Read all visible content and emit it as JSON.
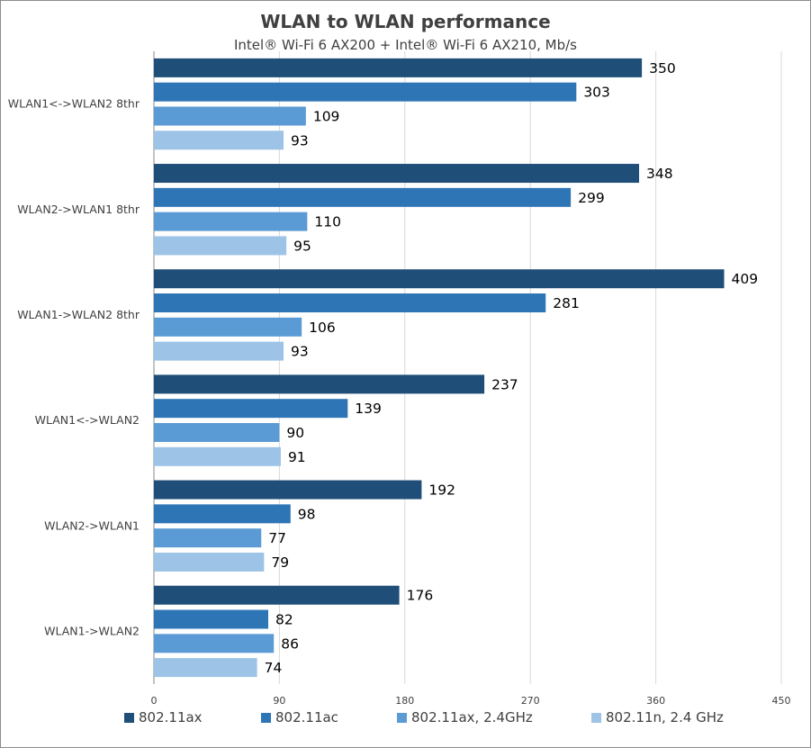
{
  "chart_data": {
    "type": "bar",
    "orientation": "horizontal",
    "title": "WLAN to WLAN performance",
    "subtitle": "Intel® Wi-Fi 6 AX200 + Intel® Wi-Fi 6 AX210, Mb/s",
    "xlabel": "",
    "ylabel": "",
    "xlim": [
      0,
      450
    ],
    "x_ticks": [
      "0",
      "90",
      "180",
      "270",
      "360",
      "450"
    ],
    "grid": true,
    "legend_position": "bottom",
    "categories": [
      "WLAN1<->WLAN2 8thr",
      "WLAN2->WLAN1 8thr",
      "WLAN1->WLAN2 8thr",
      "WLAN1<->WLAN2",
      "WLAN2->WLAN1",
      "WLAN1->WLAN2"
    ],
    "series": [
      {
        "name": "802.11ax",
        "color": "#1f4e79",
        "values": [
          350,
          348,
          409,
          237,
          192,
          176
        ]
      },
      {
        "name": "802.11ac",
        "color": "#2e75b6",
        "values": [
          303,
          299,
          281,
          139,
          98,
          82
        ]
      },
      {
        "name": "802.11ax, 2.4GHz",
        "color": "#5b9bd5",
        "values": [
          109,
          110,
          106,
          90,
          77,
          86
        ]
      },
      {
        "name": "802.11n, 2.4 GHz",
        "color": "#9dc3e6",
        "values": [
          93,
          95,
          93,
          91,
          79,
          74
        ]
      }
    ]
  }
}
